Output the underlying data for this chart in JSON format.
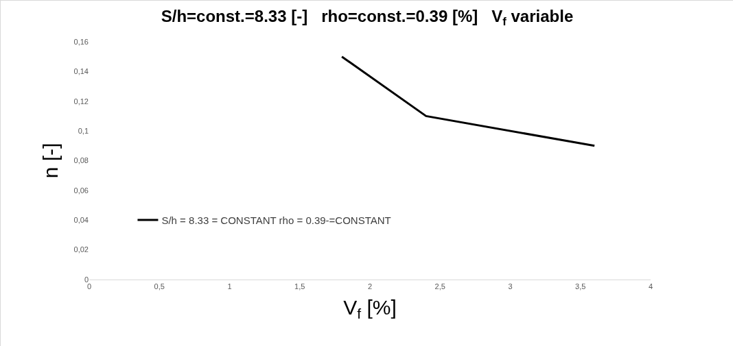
{
  "chart_data": {
    "type": "line",
    "title": "S/h=const.=8.33 [-]   rho=const.=0.39 [%]   V$_{f}$ variable",
    "xlabel": "V$_{f}$ [%]",
    "ylabel": "n [-]",
    "x": [
      1.8,
      2.4,
      3.6
    ],
    "series": [
      {
        "name": "S/h = 8.33 = CONSTANT rho = 0.39-=CONSTANT",
        "color": "#000000",
        "values": [
          0.15,
          0.11,
          0.09
        ]
      }
    ],
    "xlim": [
      0,
      4
    ],
    "xticks": [
      0,
      {
        "value": 0.5,
        "label": "0,5"
      },
      1,
      {
        "value": 1.5,
        "label": "1,5"
      },
      2,
      {
        "value": 2.5,
        "label": "2,5"
      },
      3,
      {
        "value": 3.5,
        "label": "3,5"
      },
      4
    ],
    "ylim": [
      0,
      0.16
    ],
    "yticks": [
      0,
      {
        "value": 0.02,
        "label": "0,02"
      },
      {
        "value": 0.04,
        "label": "0,04"
      },
      {
        "value": 0.06,
        "label": "0,06"
      },
      {
        "value": 0.08,
        "label": "0,08"
      },
      {
        "value": 0.1,
        "label": "0,1"
      },
      {
        "value": 0.12,
        "label": "0,12"
      },
      {
        "value": 0.14,
        "label": "0,14"
      },
      {
        "value": 0.16,
        "label": "0,16"
      }
    ],
    "grid": false,
    "legend": "left",
    "marker": "none",
    "line_style": "solid"
  }
}
